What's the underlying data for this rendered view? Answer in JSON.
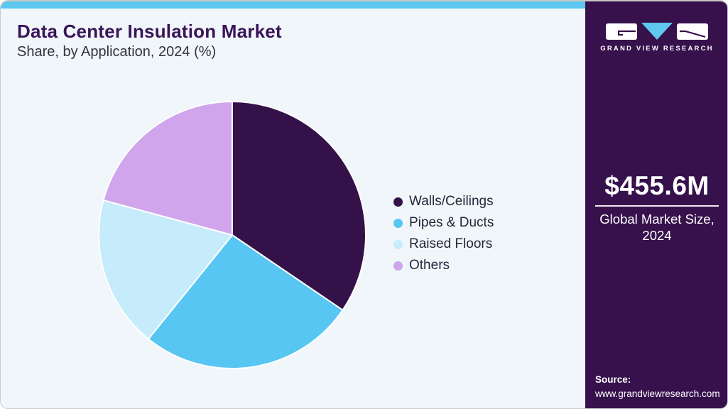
{
  "page": {
    "title": "Data Center Insulation Market",
    "subtitle": "Share, by Application, 2024 (%)"
  },
  "chart_data": {
    "type": "pie",
    "title": "Data Center Insulation Market Share, by Application, 2024 (%)",
    "categories": [
      "Walls/Ceilings",
      "Pipes & Ducts",
      "Raised Floors",
      "Others"
    ],
    "values": [
      34.5,
      26.3,
      18.4,
      20.8
    ],
    "unit": "%",
    "colors": [
      "#341148",
      "#57C6F2",
      "#C6EBFA",
      "#D0A5EB"
    ],
    "start_angle_deg": 0,
    "direction": "clockwise",
    "legend_position": "right",
    "slice_stroke": "#FFFFFF"
  },
  "sidebar": {
    "brand": "GRAND VIEW RESEARCH",
    "market_size": "$455.6M",
    "market_label_line1": "Global Market Size,",
    "market_label_line2": "2024",
    "source_label": "Source:",
    "source_url": "www.grandviewresearch.com"
  },
  "theme": {
    "stripe": "#5BC6F0",
    "card_bg": "#F0F6FA",
    "sidebar_bg": "#36114C",
    "title_color": "#3A1458",
    "subtitle_color": "#32323E",
    "legend_text": "#26263A",
    "text_on_dark": "#FFFFFF",
    "logo_triangle": "#5EC8EF"
  }
}
